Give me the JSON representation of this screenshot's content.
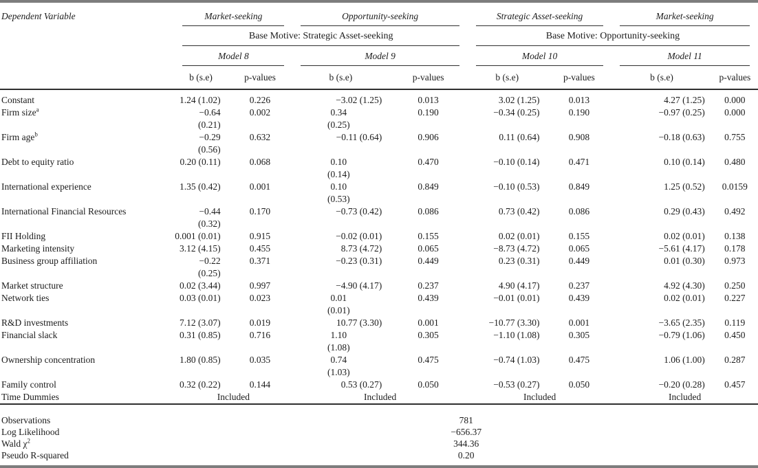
{
  "header": {
    "dependent_variable_label": "Dependent Variable",
    "groups": [
      {
        "dv": "Market-seeking",
        "model": "Model 8"
      },
      {
        "dv": "Opportunity-seeking",
        "model": "Model 9"
      },
      {
        "dv": "Strategic Asset-seeking",
        "model": "Model 10"
      },
      {
        "dv": "Market-seeking",
        "model": "Model 11"
      }
    ],
    "base_motives": [
      "Base Motive: Strategic Asset-seeking",
      "Base Motive: Opportunity-seeking"
    ],
    "col_labels": {
      "b": "b (s.e)",
      "p": "p-values"
    }
  },
  "rows": [
    {
      "label": "Constant",
      "cells": [
        [
          "1.24 (1.02)"
        ],
        "0.226",
        [
          "−3.02 (1.25)"
        ],
        "0.013",
        [
          "3.02 (1.25)"
        ],
        "0.013",
        [
          "4.27 (1.25)"
        ],
        "0.000"
      ]
    },
    {
      "label": "Firm size",
      "sup": "a",
      "cells": [
        [
          "−0.64 (0.21)"
        ],
        "0.002",
        [
          "0.34",
          "(0.25)"
        ],
        "0.190",
        [
          "−0.34 (0.25)"
        ],
        "0.190",
        [
          "−0.97 (0.25)"
        ],
        "0.000"
      ]
    },
    {
      "label": "Firm age",
      "sup": "b",
      "cells": [
        [
          "−0.29 (0.56)"
        ],
        "0.632",
        [
          "−0.11 (0.64)"
        ],
        "0.906",
        [
          "0.11 (0.64)"
        ],
        "0.908",
        [
          "−0.18 (0.63)"
        ],
        "0.755"
      ]
    },
    {
      "label": "Debt to equity ratio",
      "cells": [
        [
          "0.20 (0.11)"
        ],
        "0.068",
        [
          "0.10",
          "(0.14)"
        ],
        "0.470",
        [
          "−0.10 (0.14)"
        ],
        "0.471",
        [
          "0.10 (0.14)"
        ],
        "0.480"
      ]
    },
    {
      "label": "International experience",
      "cells": [
        [
          "1.35 (0.42)"
        ],
        "0.001",
        [
          "0.10",
          "(0.53)"
        ],
        "0.849",
        [
          "−0.10 (0.53)"
        ],
        "0.849",
        [
          "1.25 (0.52)"
        ],
        "0.0159"
      ]
    },
    {
      "label": "International Financial Resources",
      "cells": [
        [
          "−0.44 (0.32)"
        ],
        "0.170",
        [
          "−0.73 (0.42)"
        ],
        "0.086",
        [
          "0.73 (0.42)"
        ],
        "0.086",
        [
          "0.29 (0.43)"
        ],
        "0.492"
      ]
    },
    {
      "label": "FII Holding",
      "cells": [
        [
          "0.001 (0.01)"
        ],
        "0.915",
        [
          "−0.02 (0.01)"
        ],
        "0.155",
        [
          "0.02 (0.01)"
        ],
        "0.155",
        [
          "0.02 (0.01)"
        ],
        "0.138"
      ]
    },
    {
      "label": "Marketing intensity",
      "cells": [
        [
          "3.12 (4.15)"
        ],
        "0.455",
        [
          "8.73 (4.72)"
        ],
        "0.065",
        [
          "−8.73 (4.72)"
        ],
        "0.065",
        [
          "−5.61 (4.17)"
        ],
        "0.178"
      ]
    },
    {
      "label": "Business group affiliation",
      "cells": [
        [
          "−0.22 (0.25)"
        ],
        "0.371",
        [
          "−0.23 (0.31)"
        ],
        "0.449",
        [
          "0.23 (0.31)"
        ],
        "0.449",
        [
          "0.01 (0.30)"
        ],
        "0.973"
      ]
    },
    {
      "label": "Market structure",
      "cells": [
        [
          "0.02 (3.44)"
        ],
        "0.997",
        [
          "−4.90 (4.17)"
        ],
        "0.237",
        [
          "4.90 (4.17)"
        ],
        "0.237",
        [
          "4.92 (4.30)"
        ],
        "0.250"
      ]
    },
    {
      "label": "Network ties",
      "cells": [
        [
          "0.03 (0.01)"
        ],
        "0.023",
        [
          "0.01",
          "(0.01)"
        ],
        "0.439",
        [
          "−0.01 (0.01)"
        ],
        "0.439",
        [
          "0.02 (0.01)"
        ],
        "0.227"
      ]
    },
    {
      "label": "R&D investments",
      "cells": [
        [
          "7.12 (3.07)"
        ],
        "0.019",
        [
          "10.77 (3.30)"
        ],
        "0.001",
        [
          "−10.77 (3.30)"
        ],
        "0.001",
        [
          "−3.65 (2.35)"
        ],
        "0.119"
      ]
    },
    {
      "label": "Financial slack",
      "cells": [
        [
          "0.31 (0.85)"
        ],
        "0.716",
        [
          "1.10",
          "(1.08)"
        ],
        "0.305",
        [
          "−1.10 (1.08)"
        ],
        "0.305",
        [
          "−0.79 (1.06)"
        ],
        "0.450"
      ]
    },
    {
      "label": "Ownership concentration",
      "cells": [
        [
          "1.80 (0.85)"
        ],
        "0.035",
        [
          "0.74",
          "(1.03)"
        ],
        "0.475",
        [
          "−0.74 (1.03)"
        ],
        "0.475",
        [
          "1.06 (1.00)"
        ],
        "0.287"
      ]
    },
    {
      "label": "Family control",
      "cells": [
        [
          "0.32 (0.22)"
        ],
        "0.144",
        [
          "0.53 (0.27)"
        ],
        "0.050",
        [
          "−0.53 (0.27)"
        ],
        "0.050",
        [
          "−0.20 (0.28)"
        ],
        "0.457"
      ]
    },
    {
      "label": "Time Dummies",
      "included": [
        "Included",
        "Included",
        "Included",
        "Included"
      ]
    }
  ],
  "stats": [
    {
      "label": "Observations",
      "value": "781"
    },
    {
      "label": "Log Likelihood",
      "value": "−656.37"
    },
    {
      "label": "Wald χ",
      "sup": "2",
      "value": "344.36"
    },
    {
      "label": "Pseudo R-squared",
      "value": "0.20"
    }
  ],
  "colors": {
    "text": "#1b1b1b",
    "rule": "#2e2e2e",
    "double_rule": "#7d7d7d"
  }
}
